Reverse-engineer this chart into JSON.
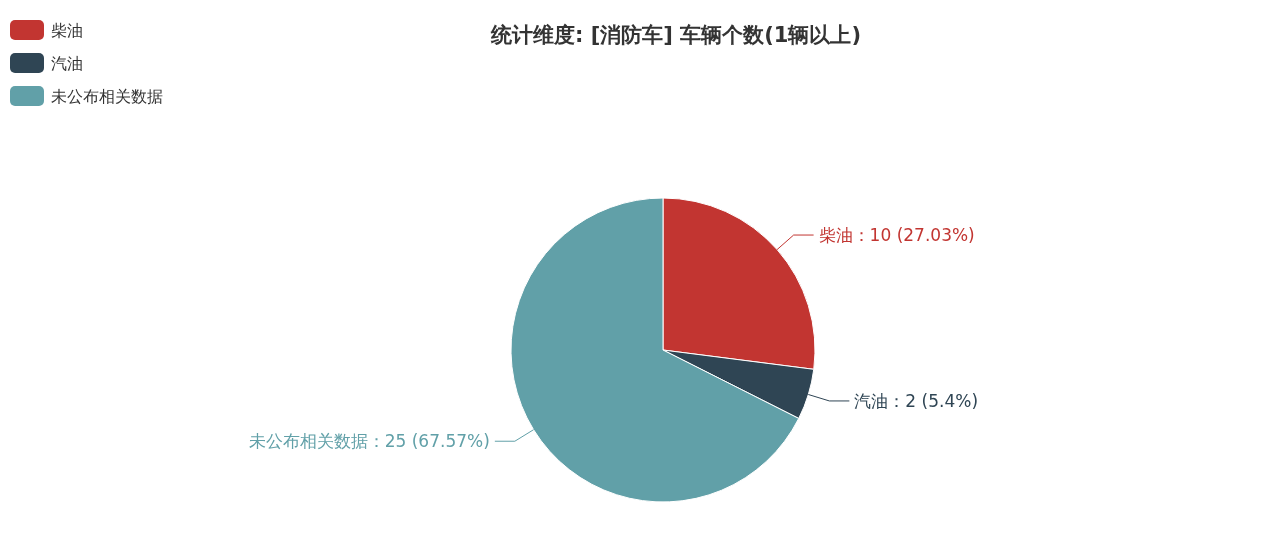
{
  "chart_data": {
    "type": "pie",
    "title": "统计维度: [消防车] 车辆个数(1辆以上)",
    "categories": [
      "柴油",
      "汽油",
      "未公布相关数据"
    ],
    "values": [
      10,
      2,
      25
    ],
    "colors": [
      "#c23531",
      "#2f4554",
      "#61a0a8"
    ],
    "value_labels": [
      "柴油：10 (27.03%)",
      "汽油：2 (5.4%)",
      "未公布相关数据：25 (67.57%)"
    ],
    "legend": "top left"
  }
}
